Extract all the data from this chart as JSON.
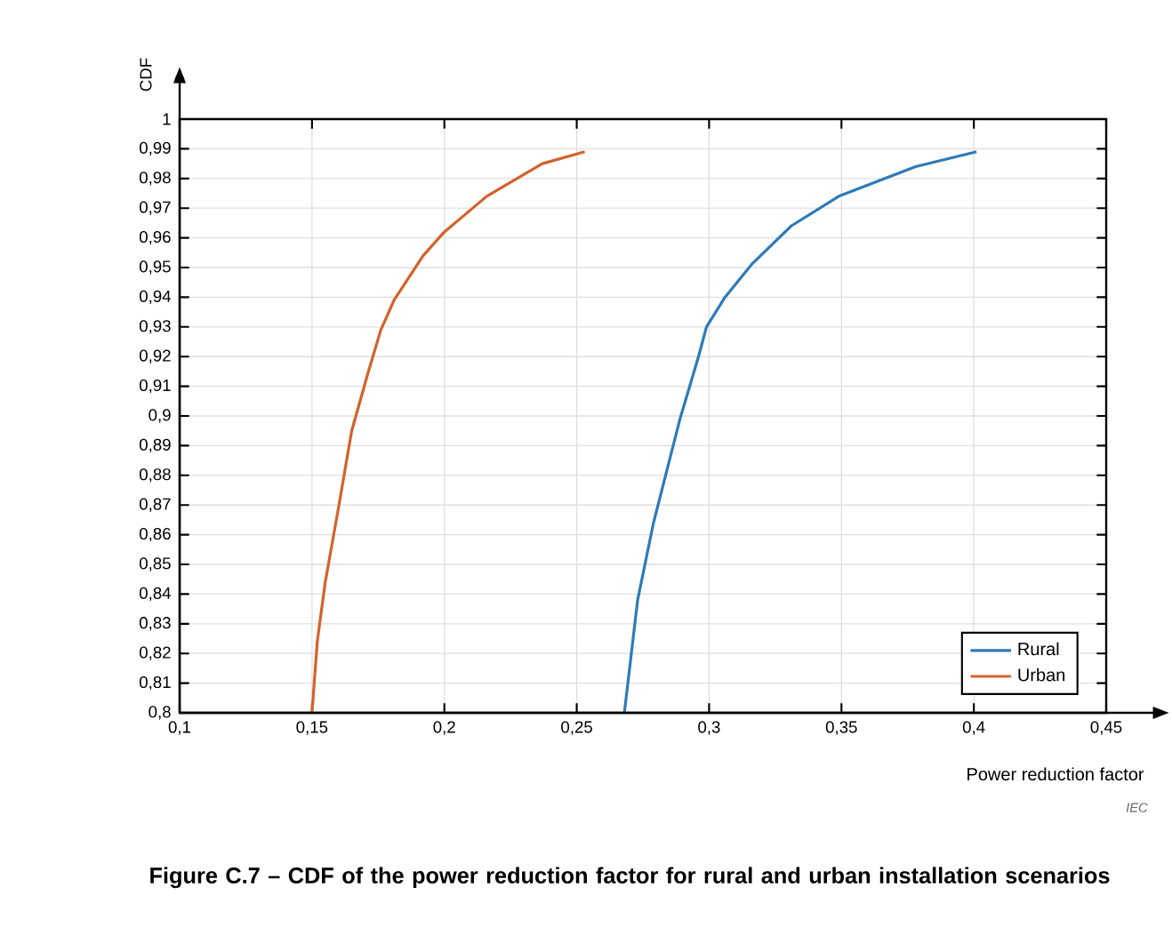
{
  "chart_data": {
    "type": "line",
    "title": "Figure C.7 – CDF of the power reduction factor for rural and urban installation scenarios",
    "xlabel": "Power reduction factor",
    "ylabel": "CDF",
    "annotations": [
      "IEC"
    ],
    "xlim": [
      0.1,
      0.45
    ],
    "ylim": [
      0.8,
      1
    ],
    "xticks": [
      {
        "value": 0.1,
        "label": "0,1"
      },
      {
        "value": 0.15,
        "label": "0,15"
      },
      {
        "value": 0.2,
        "label": "0,2"
      },
      {
        "value": 0.25,
        "label": "0,25"
      },
      {
        "value": 0.3,
        "label": "0,3"
      },
      {
        "value": 0.35,
        "label": "0,35"
      },
      {
        "value": 0.4,
        "label": "0,4"
      },
      {
        "value": 0.45,
        "label": "0,45"
      }
    ],
    "yticks": [
      {
        "value": 0.8,
        "label": "0,8"
      },
      {
        "value": 0.81,
        "label": "0,81"
      },
      {
        "value": 0.82,
        "label": "0,82"
      },
      {
        "value": 0.83,
        "label": "0,83"
      },
      {
        "value": 0.84,
        "label": "0,84"
      },
      {
        "value": 0.85,
        "label": "0,85"
      },
      {
        "value": 0.86,
        "label": "0,86"
      },
      {
        "value": 0.87,
        "label": "0,87"
      },
      {
        "value": 0.88,
        "label": "0,88"
      },
      {
        "value": 0.89,
        "label": "0,89"
      },
      {
        "value": 0.9,
        "label": "0,9"
      },
      {
        "value": 0.91,
        "label": "0,91"
      },
      {
        "value": 0.92,
        "label": "0,92"
      },
      {
        "value": 0.93,
        "label": "0,93"
      },
      {
        "value": 0.94,
        "label": "0,94"
      },
      {
        "value": 0.95,
        "label": "0,95"
      },
      {
        "value": 0.96,
        "label": "0,96"
      },
      {
        "value": 0.97,
        "label": "0,97"
      },
      {
        "value": 0.98,
        "label": "0,98"
      },
      {
        "value": 0.99,
        "label": "0,99"
      },
      {
        "value": 1,
        "label": "1"
      }
    ],
    "grid": true,
    "legend": "bottom right",
    "marker": "none",
    "line_style": "solid",
    "series": [
      {
        "name": "Rural",
        "color": "#2e7ab8",
        "x": [
          0.268,
          0.273,
          0.279,
          0.289,
          0.296,
          0.299,
          0.306,
          0.316,
          0.331,
          0.349,
          0.378,
          0.401
        ],
        "values": [
          0.8,
          0.838,
          0.864,
          0.899,
          0.92,
          0.93,
          0.94,
          0.951,
          0.964,
          0.974,
          0.984,
          0.989
        ]
      },
      {
        "name": "Urban",
        "color": "#d4622b",
        "x": [
          0.15,
          0.152,
          0.155,
          0.16,
          0.165,
          0.171,
          0.176,
          0.181,
          0.192,
          0.2,
          0.216,
          0.237,
          0.253
        ],
        "values": [
          0.8,
          0.824,
          0.844,
          0.869,
          0.895,
          0.914,
          0.929,
          0.939,
          0.954,
          0.962,
          0.974,
          0.985,
          0.989
        ]
      }
    ]
  }
}
